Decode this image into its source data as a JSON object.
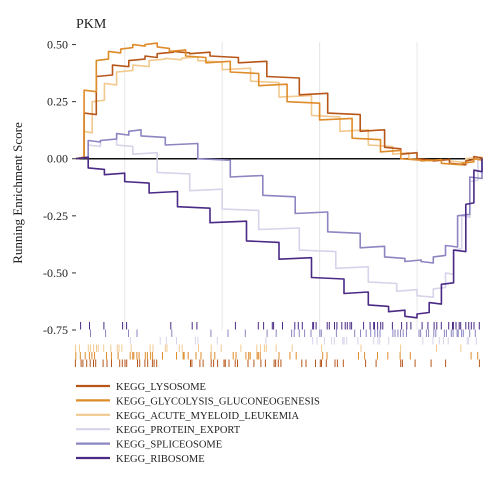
{
  "chart_data": {
    "type": "line",
    "title": "PKM",
    "ylabel": "Running Enrichment Score",
    "xlabel": "",
    "ylim": [
      -0.75,
      0.52
    ],
    "yticks": [
      "0.50",
      "0.25",
      "0.00",
      "-0.25",
      "-0.50",
      "-0.75"
    ],
    "ytick_values": [
      0.5,
      0.25,
      0.0,
      -0.25,
      -0.5,
      -0.75
    ],
    "x_range": [
      0,
      1
    ],
    "grid": "vertical",
    "legend": "bottom-left",
    "series": [
      {
        "name": "KEGG_LYSOSOME",
        "color": "#b8561a",
        "x": [
          0.0,
          0.02,
          0.05,
          0.09,
          0.13,
          0.17,
          0.2,
          0.24,
          0.28,
          0.33,
          0.4,
          0.47,
          0.55,
          0.62,
          0.7,
          0.76,
          0.8,
          0.84,
          0.88,
          0.92,
          0.96,
          0.98,
          1.0
        ],
        "values": [
          0.0,
          0.2,
          0.36,
          0.41,
          0.43,
          0.45,
          0.46,
          0.47,
          0.46,
          0.45,
          0.42,
          0.36,
          0.28,
          0.2,
          0.12,
          0.05,
          0.02,
          0.0,
          -0.01,
          -0.02,
          -0.01,
          0.01,
          0.0
        ]
      },
      {
        "name": "KEGG_GLYCOLYSIS_GLUCONEOGENESIS",
        "color": "#de8b2a",
        "x": [
          0.0,
          0.02,
          0.05,
          0.08,
          0.11,
          0.14,
          0.17,
          0.2,
          0.23,
          0.27,
          0.32,
          0.38,
          0.45,
          0.52,
          0.6,
          0.68,
          0.75,
          0.8,
          0.85,
          0.9,
          0.95,
          0.98,
          1.0
        ],
        "values": [
          0.0,
          0.3,
          0.43,
          0.47,
          0.48,
          0.5,
          0.5,
          0.49,
          0.47,
          0.45,
          0.42,
          0.38,
          0.32,
          0.25,
          0.17,
          0.09,
          0.03,
          0.0,
          -0.01,
          -0.02,
          -0.02,
          0.0,
          0.0
        ]
      },
      {
        "name": "KEGG_ACUTE_MYELOID_LEUKEMIA",
        "color": "#f1c98e",
        "x": [
          0.0,
          0.02,
          0.04,
          0.07,
          0.1,
          0.14,
          0.18,
          0.22,
          0.26,
          0.3,
          0.36,
          0.43,
          0.5,
          0.58,
          0.65,
          0.72,
          0.78,
          0.82,
          0.87,
          0.92,
          0.96,
          1.0
        ],
        "values": [
          0.0,
          0.12,
          0.25,
          0.33,
          0.38,
          0.41,
          0.43,
          0.44,
          0.44,
          0.43,
          0.39,
          0.34,
          0.27,
          0.19,
          0.12,
          0.06,
          0.02,
          0.0,
          -0.01,
          -0.01,
          0.0,
          0.0
        ]
      },
      {
        "name": "KEGG_PROTEIN_EXPORT",
        "color": "#d6d3ea",
        "x": [
          0.0,
          0.03,
          0.06,
          0.1,
          0.14,
          0.2,
          0.28,
          0.36,
          0.45,
          0.55,
          0.64,
          0.72,
          0.79,
          0.84,
          0.88,
          0.91,
          0.93,
          0.95,
          0.97,
          0.99,
          1.0
        ],
        "values": [
          0.0,
          0.06,
          0.08,
          0.06,
          0.02,
          -0.06,
          -0.14,
          -0.22,
          -0.31,
          -0.4,
          -0.48,
          -0.54,
          -0.58,
          -0.6,
          -0.57,
          -0.5,
          -0.4,
          -0.25,
          -0.1,
          0.0,
          0.0
        ]
      },
      {
        "name": "KEGG_SPLICEOSOME",
        "color": "#8b85c1",
        "x": [
          0.0,
          0.03,
          0.06,
          0.1,
          0.13,
          0.16,
          0.22,
          0.3,
          0.38,
          0.46,
          0.54,
          0.62,
          0.7,
          0.76,
          0.81,
          0.85,
          0.88,
          0.91,
          0.94,
          0.97,
          1.0
        ],
        "values": [
          0.0,
          0.08,
          0.08,
          0.11,
          0.12,
          0.1,
          0.06,
          0.0,
          -0.08,
          -0.16,
          -0.24,
          -0.32,
          -0.39,
          -0.43,
          -0.45,
          -0.45,
          -0.43,
          -0.38,
          -0.25,
          -0.08,
          0.0
        ]
      },
      {
        "name": "KEGG_RIBOSOME",
        "color": "#4a2a85",
        "x": [
          0.0,
          0.03,
          0.07,
          0.12,
          0.18,
          0.25,
          0.33,
          0.42,
          0.5,
          0.58,
          0.66,
          0.72,
          0.77,
          0.81,
          0.84,
          0.87,
          0.9,
          0.93,
          0.96,
          0.98,
          1.0
        ],
        "values": [
          0.0,
          -0.04,
          -0.07,
          -0.1,
          -0.15,
          -0.21,
          -0.28,
          -0.36,
          -0.44,
          -0.52,
          -0.59,
          -0.64,
          -0.67,
          -0.69,
          -0.68,
          -0.63,
          -0.55,
          -0.4,
          -0.2,
          -0.05,
          0.0
        ]
      }
    ],
    "hit_rows": [
      {
        "color": "#4a2a85",
        "density": 0.55,
        "bias": "right"
      },
      {
        "color": "#8b85c1",
        "density": 0.45,
        "bias": "right"
      },
      {
        "color": "#d6d3ea",
        "density": 0.35,
        "bias": "right"
      },
      {
        "color": "#f1c98e",
        "density": 0.35,
        "bias": "left"
      },
      {
        "color": "#de8b2a",
        "density": 0.45,
        "bias": "left"
      },
      {
        "color": "#b8561a",
        "density": 0.55,
        "bias": "left"
      }
    ]
  }
}
